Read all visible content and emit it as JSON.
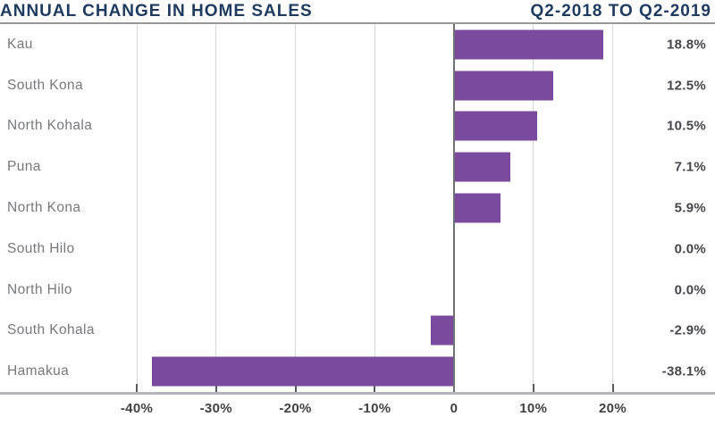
{
  "header": {
    "title": "ANNUAL CHANGE IN HOME SALES",
    "period": "Q2-2018 TO Q2-2019"
  },
  "chart_data": {
    "type": "bar",
    "orientation": "horizontal",
    "title": "ANNUAL CHANGE IN HOME SALES",
    "subtitle": "Q2-2018 TO Q2-2019",
    "categories": [
      "Kau",
      "South Kona",
      "North Kohala",
      "Puna",
      "North Kona",
      "South Hilo",
      "North Hilo",
      "South Kohala",
      "Hamakua"
    ],
    "values": [
      18.8,
      12.5,
      10.5,
      7.1,
      5.9,
      0.0,
      0.0,
      -2.9,
      -38.1
    ],
    "value_labels": [
      "18.8%",
      "12.5%",
      "10.5%",
      "7.1%",
      "5.9%",
      "0.0%",
      "0.0%",
      "-2.9%",
      "-38.1%"
    ],
    "x_ticks": [
      -40,
      -30,
      -20,
      -10,
      0,
      10,
      20
    ],
    "x_tick_labels": [
      "-40%",
      "-30%",
      "-20%",
      "-10%",
      "0",
      "10%",
      "20%"
    ],
    "xlim": [
      -57,
      33
    ],
    "grid": true,
    "legend": false,
    "bar_color": "#7a4a9e"
  },
  "colors": {
    "bar": "#7a4a9e",
    "title_navy": "#1e3a5e",
    "category_label": "#77787b",
    "value_label": "#454649",
    "axis_label": "#414143",
    "gridline": "#d6d7d8",
    "zero_line": "#6e7073",
    "top_rule": "#97999c",
    "axis_rule": "#b3b5b8"
  }
}
